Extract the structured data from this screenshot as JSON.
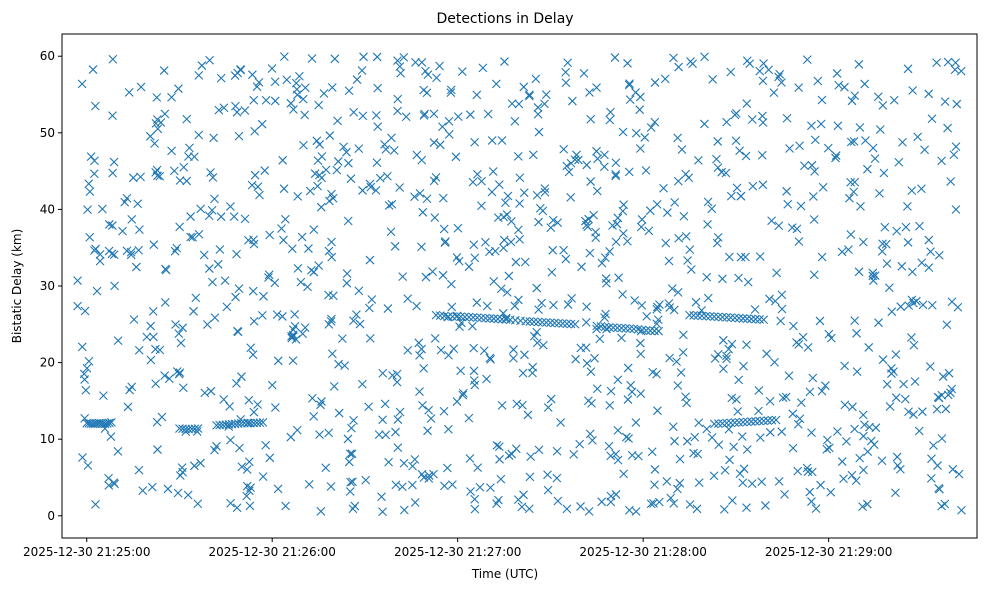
{
  "chart_data": {
    "type": "scatter",
    "title": "Detections in Delay",
    "xlabel": "Time (UTC)",
    "ylabel": "Bistatic Delay (km)",
    "x_unit": "UTC timestamp (2025-12-30)",
    "xlim": [
      "2025-12-30 21:24:52",
      "2025-12-30 21:29:48"
    ],
    "ylim": [
      -2.9,
      62.9
    ],
    "x_ticks": [
      "2025-12-30 21:25:00",
      "2025-12-30 21:26:00",
      "2025-12-30 21:27:00",
      "2025-12-30 21:28:00",
      "2025-12-30 21:29:00"
    ],
    "y_ticks": [
      0,
      10,
      20,
      30,
      40,
      50,
      60
    ],
    "marker": "x",
    "color": "#1f77b4",
    "grid": false,
    "legend": "none",
    "series": [
      {
        "points": [
          [
            "2025-12-30 21:25:00",
            12.1
          ],
          [
            "2025-12-30 21:25:02",
            12.0
          ],
          [
            "2025-12-30 21:25:04",
            12.1
          ],
          [
            "2025-12-30 21:25:06",
            12.0
          ],
          [
            "2025-12-30 21:25:08",
            12.2
          ],
          [
            "2025-12-30 21:25:30",
            11.4
          ],
          [
            "2025-12-30 21:25:33",
            11.3
          ],
          [
            "2025-12-30 21:25:36",
            11.4
          ],
          [
            "2025-12-30 21:25:42",
            11.8
          ],
          [
            "2025-12-30 21:25:45",
            11.9
          ],
          [
            "2025-12-30 21:25:48",
            12.0
          ],
          [
            "2025-12-30 21:25:51",
            12.1
          ],
          [
            "2025-12-30 21:25:54",
            12.1
          ],
          [
            "2025-12-30 21:25:57",
            12.2
          ],
          [
            "2025-12-30 21:26:53",
            26.2
          ],
          [
            "2025-12-30 21:26:57",
            26.0
          ],
          [
            "2025-12-30 21:27:01",
            26.0
          ],
          [
            "2025-12-30 21:27:05",
            25.9
          ],
          [
            "2025-12-30 21:27:09",
            25.8
          ],
          [
            "2025-12-30 21:27:13",
            25.7
          ],
          [
            "2025-12-30 21:27:17",
            25.6
          ],
          [
            "2025-12-30 21:27:22",
            25.4
          ],
          [
            "2025-12-30 21:27:26",
            25.3
          ],
          [
            "2025-12-30 21:27:30",
            25.2
          ],
          [
            "2025-12-30 21:27:34",
            25.1
          ],
          [
            "2025-12-30 21:27:38",
            25.0
          ],
          [
            "2025-12-30 21:27:45",
            24.8
          ],
          [
            "2025-12-30 21:27:49",
            24.6
          ],
          [
            "2025-12-30 21:27:53",
            24.5
          ],
          [
            "2025-12-30 21:27:57",
            24.4
          ],
          [
            "2025-12-30 21:28:01",
            24.2
          ],
          [
            "2025-12-30 21:28:05",
            24.1
          ],
          [
            "2025-12-30 21:28:15",
            26.2
          ],
          [
            "2025-12-30 21:28:19",
            26.1
          ],
          [
            "2025-12-30 21:28:23",
            26.0
          ],
          [
            "2025-12-30 21:28:27",
            25.9
          ],
          [
            "2025-12-30 21:28:31",
            25.8
          ],
          [
            "2025-12-30 21:28:35",
            25.7
          ],
          [
            "2025-12-30 21:28:39",
            25.6
          ],
          [
            "2025-12-30 21:28:23",
            12.0
          ],
          [
            "2025-12-30 21:28:27",
            12.1
          ],
          [
            "2025-12-30 21:28:31",
            12.2
          ],
          [
            "2025-12-30 21:28:35",
            12.3
          ],
          [
            "2025-12-30 21:28:39",
            12.4
          ],
          [
            "2025-12-30 21:28:43",
            12.5
          ]
        ]
      }
    ]
  }
}
